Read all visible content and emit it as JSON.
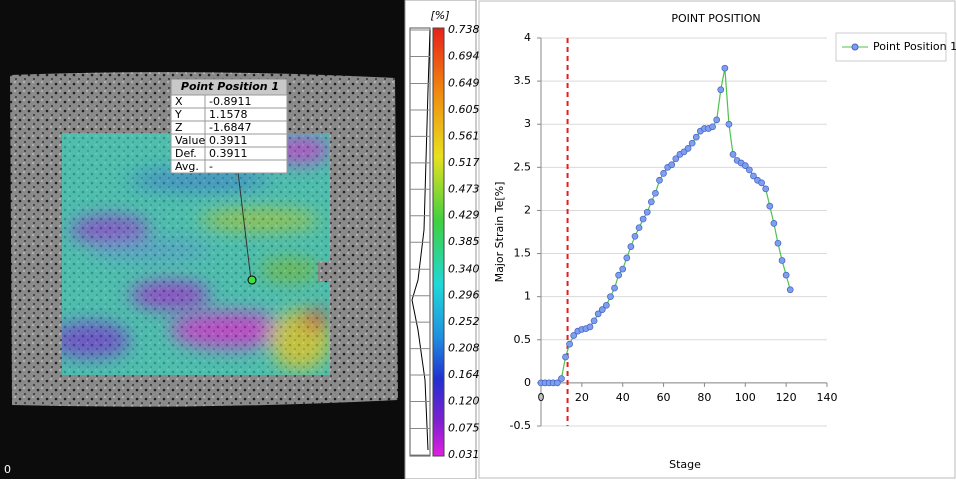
{
  "viewer": {
    "corner_label": "0"
  },
  "info_box": {
    "title": "Point Position 1",
    "rows": [
      [
        "X",
        "-0.8911"
      ],
      [
        "Y",
        "1.1578"
      ],
      [
        "Z",
        "-1.6847"
      ],
      [
        "Value",
        "0.3911"
      ],
      [
        "Def.",
        "0.3911"
      ],
      [
        "Avg.",
        "-"
      ]
    ]
  },
  "colorbar": {
    "unit": "[%]",
    "ticks": [
      0.738,
      0.694,
      0.649,
      0.605,
      0.561,
      0.517,
      0.473,
      0.429,
      0.385,
      0.34,
      0.296,
      0.252,
      0.208,
      0.164,
      0.12,
      0.075,
      0.031
    ]
  },
  "chart_data": {
    "type": "line",
    "title": "POINT POSITION",
    "x_label": "Stage",
    "y_label": "Major Strain Te[%]",
    "xlim": [
      0,
      140
    ],
    "xticks": [
      0,
      20,
      40,
      60,
      80,
      100,
      120,
      140
    ],
    "ylim": [
      -0.5,
      4
    ],
    "yticks": [
      -0.5,
      0,
      0.5,
      1,
      1.5,
      2,
      2.5,
      3,
      3.5,
      4
    ],
    "grid": true,
    "legend": "top-right",
    "vline": 13,
    "vline_color": "#e02020",
    "x": [
      0,
      2,
      4,
      6,
      8,
      10,
      12,
      14,
      16,
      18,
      20,
      22,
      24,
      26,
      28,
      30,
      32,
      34,
      36,
      38,
      40,
      42,
      44,
      46,
      48,
      50,
      52,
      54,
      56,
      58,
      60,
      62,
      64,
      66,
      68,
      70,
      72,
      74,
      76,
      78,
      80,
      82,
      84,
      86,
      88,
      90,
      92,
      94,
      96,
      98,
      100,
      102,
      104,
      106,
      108,
      110,
      112,
      114,
      116,
      118,
      120,
      122
    ],
    "series": [
      {
        "name": "Point Position 1",
        "color": "#4dc24d",
        "marker_color": "#7f9ef0",
        "values": [
          0,
          0,
          0,
          0,
          0,
          0.05,
          0.3,
          0.45,
          0.55,
          0.6,
          0.62,
          0.63,
          0.65,
          0.72,
          0.8,
          0.85,
          0.9,
          1.0,
          1.1,
          1.25,
          1.32,
          1.45,
          1.58,
          1.7,
          1.8,
          1.9,
          1.98,
          2.1,
          2.2,
          2.35,
          2.43,
          2.5,
          2.53,
          2.6,
          2.65,
          2.68,
          2.72,
          2.78,
          2.85,
          2.92,
          2.95,
          2.95,
          2.97,
          3.05,
          3.4,
          3.65,
          3.0,
          2.65,
          2.58,
          2.55,
          2.52,
          2.47,
          2.4,
          2.35,
          2.32,
          2.25,
          2.05,
          1.85,
          1.62,
          1.42,
          1.25,
          1.08
        ]
      }
    ]
  }
}
